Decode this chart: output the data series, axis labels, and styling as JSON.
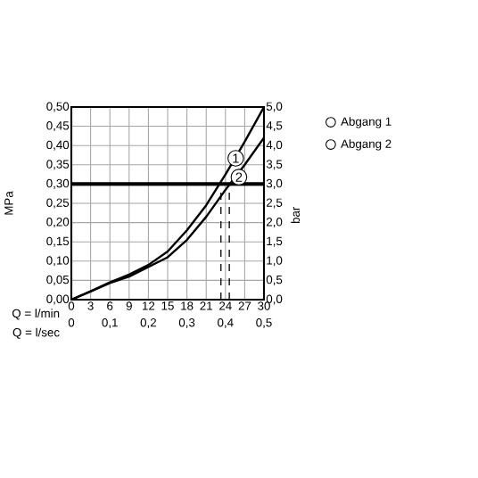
{
  "chart_data": {
    "type": "line",
    "x": [
      0,
      3,
      6,
      9,
      12,
      15,
      18,
      21,
      24,
      27,
      30
    ],
    "series": [
      {
        "name": "Abgang 1",
        "color": "#000000",
        "values": [
          0,
          0.022,
          0.045,
          0.065,
          0.09,
          0.125,
          0.18,
          0.245,
          0.325,
          0.41,
          0.5
        ]
      },
      {
        "name": "Abgang 2",
        "color": "#000000",
        "values": [
          0,
          0.021,
          0.043,
          0.06,
          0.085,
          0.11,
          0.155,
          0.215,
          0.285,
          0.35,
          0.42
        ]
      }
    ],
    "xlabel": "Q = l/min",
    "x2label": "Q = l/sec",
    "ylabel": "MPa",
    "y2label": "bar",
    "xlim": [
      0,
      30
    ],
    "xticks": [
      0,
      3,
      6,
      9,
      12,
      15,
      18,
      21,
      24,
      27,
      30
    ],
    "x2lim": [
      0,
      0.5
    ],
    "x2ticks": [
      0,
      {
        "value": 0.1,
        "label": "0,1"
      },
      {
        "value": 0.2,
        "label": "0,2"
      },
      {
        "value": 0.3,
        "label": "0,3"
      },
      {
        "value": 0.4,
        "label": "0,4"
      },
      {
        "value": 0.5,
        "label": "0,5"
      }
    ],
    "ylim": [
      0,
      0.5
    ],
    "yticks": [
      {
        "value": 0,
        "label": "0,00"
      },
      {
        "value": 0.05,
        "label": "0,05"
      },
      {
        "value": 0.1,
        "label": "0,10"
      },
      {
        "value": 0.15,
        "label": "0,15"
      },
      {
        "value": 0.2,
        "label": "0,20"
      },
      {
        "value": 0.25,
        "label": "0,25"
      },
      {
        "value": 0.3,
        "label": "0,30"
      },
      {
        "value": 0.35,
        "label": "0,35"
      },
      {
        "value": 0.4,
        "label": "0,40"
      },
      {
        "value": 0.45,
        "label": "0,45"
      },
      {
        "value": 0.5,
        "label": "0,50"
      }
    ],
    "y2lim": [
      0,
      5
    ],
    "y2ticks": [
      {
        "value": 0,
        "label": "0,0"
      },
      {
        "value": 0.5,
        "label": "0,5"
      },
      {
        "value": 1,
        "label": "1,0"
      },
      {
        "value": 1.5,
        "label": "1,5"
      },
      {
        "value": 2,
        "label": "2,0"
      },
      {
        "value": 2.5,
        "label": "2,5"
      },
      {
        "value": 3,
        "label": "3,0"
      },
      {
        "value": 3.5,
        "label": "3,5"
      },
      {
        "value": 4,
        "label": "4,0"
      },
      {
        "value": 4.5,
        "label": "4,5"
      },
      {
        "value": 5,
        "label": "5,0"
      }
    ],
    "ref_lines": [
      {
        "axis": "y",
        "value": 0.3,
        "line_style": "solid"
      },
      {
        "axis": "x",
        "value": 23.3,
        "line_style": "dashed"
      },
      {
        "axis": "x",
        "value": 24.6,
        "line_style": "dashed"
      }
    ],
    "annotations": [
      {
        "text": "1",
        "x": 25.6,
        "y": 0.367
      },
      {
        "text": "2",
        "x": 26.1,
        "y": 0.318
      }
    ],
    "grid": true,
    "legend": "top right",
    "marker": "none",
    "line_style": "solid"
  }
}
